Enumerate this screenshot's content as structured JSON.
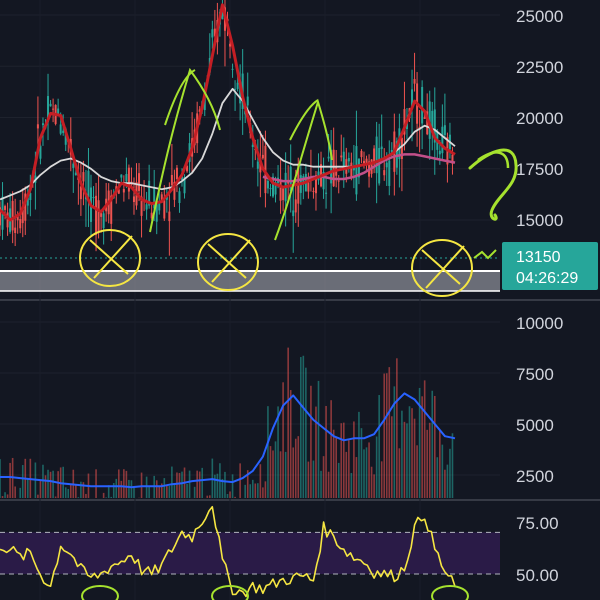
{
  "chart_data": [
    {
      "type": "candlestick",
      "panel": "price",
      "y_ticks": [
        "25000",
        "22500",
        "20000",
        "17500",
        "15000"
      ],
      "ylim": [
        11500,
        26000
      ],
      "current_price": "13150",
      "countdown": "04:26:29",
      "support_zone": [
        12400,
        13100
      ],
      "colors": {
        "up": "#26a69a",
        "down": "#ef5350",
        "ma_fast": "#c41e24",
        "ma_slow": "#d9d9d9",
        "ma_mid": "#c2508a",
        "annotation": "#f5e642",
        "annotation_green": "#a6e22e",
        "badge": "#26a69a"
      },
      "series": [
        {
          "name_hidden": "fast-ma",
          "values": [
            15500,
            15000,
            15300,
            16500,
            19000,
            20200,
            20100,
            18500,
            16800,
            15700,
            15400,
            16000,
            16800,
            16600,
            16000,
            15800,
            15900,
            16500,
            17200,
            18500,
            20500,
            23000,
            25500,
            23500,
            21000,
            19000,
            17500,
            16800,
            16600,
            16700,
            16800,
            17000,
            17200,
            17400,
            17500,
            17600,
            17700,
            17800,
            18000,
            18300,
            19500,
            20800,
            20300,
            19000,
            18500,
            18200
          ]
        },
        {
          "name_hidden": "slow-ma",
          "values": [
            16000,
            16200,
            16400,
            16700,
            17200,
            17600,
            17900,
            18000,
            17800,
            17500,
            17100,
            16900,
            16800,
            16800,
            16700,
            16600,
            16500,
            16600,
            16900,
            17300,
            18000,
            19200,
            20700,
            21400,
            20800,
            19900,
            19000,
            18300,
            17900,
            17700,
            17700,
            17600,
            17600,
            17600,
            17600,
            17600,
            17700,
            17800,
            18000,
            18300,
            18700,
            19300,
            19600,
            19400,
            19000,
            18600
          ]
        },
        {
          "name_hidden": "mid-ma",
          "values": [
            null,
            null,
            null,
            null,
            null,
            null,
            null,
            null,
            null,
            null,
            null,
            null,
            null,
            null,
            null,
            null,
            null,
            null,
            null,
            null,
            null,
            null,
            null,
            null,
            null,
            null,
            17100,
            17000,
            16900,
            16900,
            17000,
            17100,
            17100,
            17000,
            17000,
            17100,
            17300,
            17600,
            17900,
            18100,
            18200,
            18200,
            18100,
            18000,
            17900,
            17800
          ]
        }
      ]
    },
    {
      "type": "bar+line",
      "panel": "volume",
      "y_ticks": [
        "10000",
        "7500",
        "5000",
        "2500"
      ],
      "ylim": [
        1500,
        11200
      ],
      "line_values": [
        2400,
        2400,
        2350,
        2300,
        2250,
        2200,
        2100,
        2050,
        2000,
        1950,
        1950,
        1950,
        1950,
        1900,
        1950,
        1950,
        1950,
        2050,
        2100,
        2200,
        2250,
        2300,
        2200,
        2150,
        2350,
        2700,
        3400,
        4800,
        5900,
        6400,
        5800,
        5200,
        4800,
        4400,
        4200,
        4300,
        4300,
        4500,
        5200,
        6000,
        6500,
        6200,
        5600,
        5000,
        4400,
        4300
      ],
      "colors": {
        "line": "#2962ff",
        "bar_up": "#26a69a",
        "bar_down": "#ef5350"
      }
    },
    {
      "type": "line",
      "panel": "oscillator",
      "y_ticks": [
        "75.00",
        "50.00"
      ],
      "ylim": [
        36,
        86
      ],
      "band": [
        50,
        70
      ],
      "values": [
        64,
        62,
        58,
        60,
        50,
        44,
        64,
        60,
        52,
        48,
        50,
        54,
        56,
        60,
        52,
        50,
        54,
        62,
        70,
        68,
        76,
        84,
        56,
        43,
        41,
        44,
        43,
        45,
        47,
        48,
        49,
        47,
        72,
        68,
        62,
        58,
        56,
        51,
        50,
        49,
        53,
        72,
        79,
        62,
        51,
        44
      ],
      "colors": {
        "line": "#f5e642",
        "band": "#2a1b47",
        "dash": "#b2b5be"
      }
    }
  ]
}
